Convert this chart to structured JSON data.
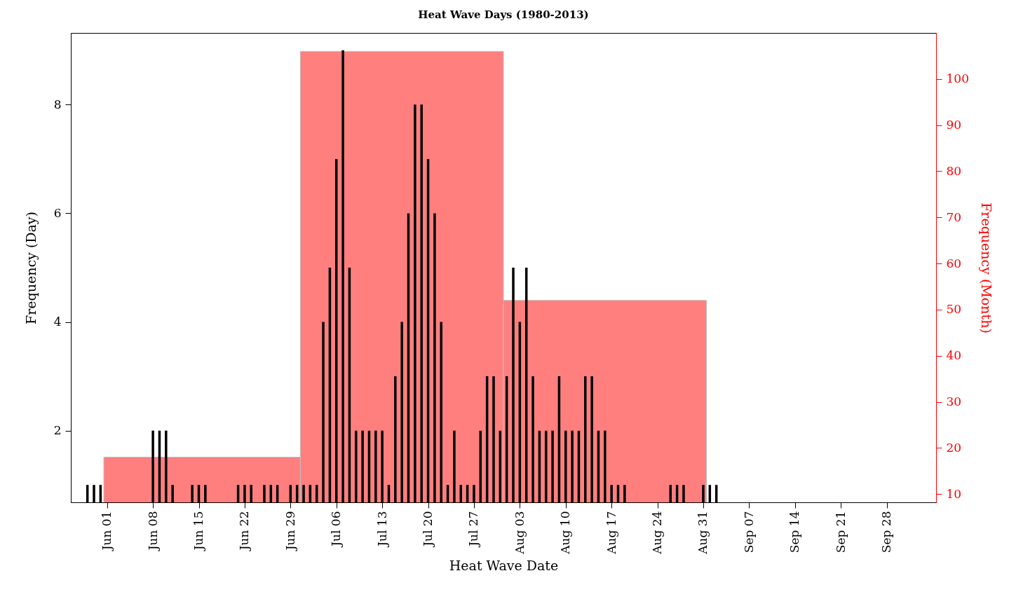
{
  "chart_data": {
    "type": "bar",
    "title": "Heat Wave Days (1980-2013)",
    "xlabel": "Heat Wave Date",
    "ylabel": "Frequency (Day)",
    "y2label": "Frequency (Month)",
    "xlim": [
      "--05-27",
      "--10-05"
    ],
    "xticks": [
      {
        "value": "--06-01",
        "label": "Jun 01"
      },
      {
        "value": "--06-08",
        "label": "Jun 08"
      },
      {
        "value": "--06-15",
        "label": "Jun 15"
      },
      {
        "value": "--06-22",
        "label": "Jun 22"
      },
      {
        "value": "--06-29",
        "label": "Jun 29"
      },
      {
        "value": "--07-06",
        "label": "Jul 06"
      },
      {
        "value": "--07-13",
        "label": "Jul 13"
      },
      {
        "value": "--07-20",
        "label": "Jul 20"
      },
      {
        "value": "--07-27",
        "label": "Jul 27"
      },
      {
        "value": "--08-03",
        "label": "Aug 03"
      },
      {
        "value": "--08-10",
        "label": "Aug 10"
      },
      {
        "value": "--08-17",
        "label": "Aug 17"
      },
      {
        "value": "--08-24",
        "label": "Aug 24"
      },
      {
        "value": "--08-31",
        "label": "Aug 31"
      },
      {
        "value": "--09-07",
        "label": "Sep 07"
      },
      {
        "value": "--09-14",
        "label": "Sep 14"
      },
      {
        "value": "--09-21",
        "label": "Sep 21"
      },
      {
        "value": "--09-28",
        "label": "Sep 28"
      }
    ],
    "ylim": [
      0.68,
      9.32
    ],
    "yticks": [
      2,
      4,
      6,
      8
    ],
    "y2lim": [
      8.2,
      110
    ],
    "y2ticks": [
      10,
      20,
      30,
      40,
      50,
      60,
      70,
      80,
      90,
      100
    ],
    "series": [
      {
        "axis": "y2",
        "color": "#ff7f7f",
        "x": [
          "--06-01",
          "--07-01",
          "--08-01"
        ],
        "values": [
          18,
          106,
          52
        ]
      },
      {
        "color": "#000000",
        "x": [
          "--05-29",
          "--05-30",
          "--05-31",
          "--06-08",
          "--06-09",
          "--06-10",
          "--06-11",
          "--06-14",
          "--06-15",
          "--06-16",
          "--06-21",
          "--06-22",
          "--06-23",
          "--06-25",
          "--06-26",
          "--06-27",
          "--06-29",
          "--06-30",
          "--07-01",
          "--07-02",
          "--07-03",
          "--07-04",
          "--07-05",
          "--07-06",
          "--07-07",
          "--07-08",
          "--07-09",
          "--07-10",
          "--07-11",
          "--07-12",
          "--07-13",
          "--07-14",
          "--07-15",
          "--07-16",
          "--07-17",
          "--07-18",
          "--07-19",
          "--07-20",
          "--07-21",
          "--07-22",
          "--07-23",
          "--07-24",
          "--07-25",
          "--07-26",
          "--07-27",
          "--07-28",
          "--07-29",
          "--07-30",
          "--07-31",
          "--08-01",
          "--08-02",
          "--08-03",
          "--08-04",
          "--08-05",
          "--08-06",
          "--08-07",
          "--08-08",
          "--08-09",
          "--08-10",
          "--08-11",
          "--08-12",
          "--08-13",
          "--08-14",
          "--08-15",
          "--08-16",
          "--08-17",
          "--08-18",
          "--08-19",
          "--08-26",
          "--08-27",
          "--08-28",
          "--08-31",
          "--09-01",
          "--09-02"
        ],
        "values": [
          1,
          1,
          1,
          2,
          2,
          2,
          1,
          1,
          1,
          1,
          1,
          1,
          1,
          1,
          1,
          1,
          1,
          1,
          1,
          1,
          1,
          4,
          5,
          7,
          9,
          5,
          2,
          2,
          2,
          2,
          2,
          1,
          3,
          4,
          6,
          8,
          8,
          7,
          6,
          4,
          1,
          2,
          1,
          1,
          1,
          2,
          3,
          3,
          2,
          3,
          5,
          4,
          5,
          3,
          2,
          2,
          2,
          3,
          2,
          2,
          2,
          3,
          3,
          2,
          2,
          1,
          1,
          1,
          1,
          1,
          1,
          1,
          1,
          1
        ]
      }
    ]
  }
}
